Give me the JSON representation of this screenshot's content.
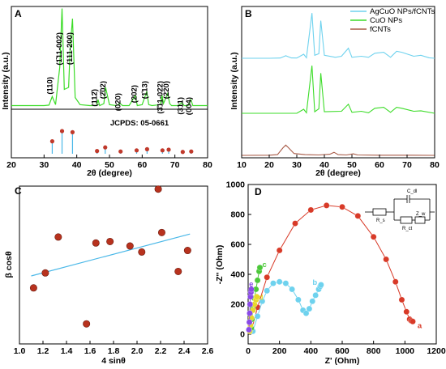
{
  "chart_data": [
    {
      "panel": "A",
      "type": "line",
      "xlabel": "2θ (degree)",
      "ylabel": "Intensity (a.u.)",
      "xlim": [
        20,
        80
      ],
      "xticks": [
        "20",
        "30",
        "40",
        "50",
        "60",
        "70",
        "80"
      ],
      "series": [
        {
          "color": "#3cdc28",
          "x": [
            20,
            25,
            30,
            31.5,
            32.5,
            33.5,
            34.8,
            35.5,
            36.2,
            37.5,
            38.0,
            38.7,
            39.5,
            41,
            44,
            46.1,
            46.5,
            47,
            48.3,
            48.8,
            50,
            52,
            53.3,
            54,
            56,
            57.9,
            58.5,
            60,
            61.4,
            62,
            63,
            65.5,
            66.1,
            66.5,
            67.8,
            68.4,
            69,
            71,
            72.2,
            72.8,
            74,
            74.9,
            75.5,
            77,
            80
          ],
          "y": [
            2,
            2,
            2,
            2.5,
            11,
            3,
            40,
            98,
            18,
            20,
            60,
            88,
            10,
            3,
            2,
            2,
            8,
            2,
            4,
            20,
            3,
            2,
            4,
            2,
            2,
            12,
            2,
            3,
            16,
            3,
            2,
            3,
            12,
            4,
            14,
            4,
            2,
            2,
            5,
            2,
            2,
            8,
            2,
            2,
            2
          ]
        }
      ],
      "reference": {
        "label": "JCPDS: 05-0661",
        "x": [
          32.5,
          35.5,
          38.7,
          46.2,
          48.7,
          53.4,
          58.3,
          61.5,
          66.2,
          68.1,
          72.4,
          75.0
        ],
        "h": [
          0.55,
          1.0,
          0.95,
          0.12,
          0.28,
          0.1,
          0.15,
          0.2,
          0.15,
          0.18,
          0.08,
          0.1
        ]
      },
      "annotations": [
        {
          "text": "(110)",
          "x": 32.5
        },
        {
          "text": "(1̄11-002)",
          "x": 35.4
        },
        {
          "text": "(111-200)",
          "x": 38.6
        },
        {
          "text": "(112̄)",
          "x": 46.2
        },
        {
          "text": "(2̄02)",
          "x": 48.7
        },
        {
          "text": "(020)",
          "x": 53.4
        },
        {
          "text": "(202)",
          "x": 58.3
        },
        {
          "text": "(1̄13)",
          "x": 61.5
        },
        {
          "text": "(3̄11-022)",
          "x": 66.2
        },
        {
          "text": "(220)",
          "x": 68.1
        },
        {
          "text": "(311)",
          "x": 72.4
        },
        {
          "text": "(004)",
          "x": 75.0
        }
      ]
    },
    {
      "panel": "B",
      "type": "line",
      "xlabel": "2θ (degree)",
      "ylabel": "Intensity (a.u.)",
      "xlim": [
        10,
        80
      ],
      "xticks": [
        "10",
        "20",
        "30",
        "40",
        "50",
        "60",
        "70",
        "80"
      ],
      "series": [
        {
          "name": "AgCuO NPs/fCNTs",
          "color": "#6ed2ee",
          "x": [
            10,
            20,
            24,
            26,
            28,
            30,
            32.5,
            33.5,
            35.5,
            36.5,
            38,
            38.7,
            40,
            44,
            46.2,
            48.7,
            50,
            53.4,
            56,
            58.3,
            61.5,
            64,
            66.2,
            68.1,
            72.4,
            75,
            78,
            80
          ],
          "y": [
            0,
            0,
            0.5,
            5,
            0.6,
            0.5,
            8,
            1,
            90,
            6,
            9,
            75,
            6,
            2,
            4,
            20,
            2,
            4,
            2,
            10,
            12,
            2,
            14,
            12,
            4,
            6,
            1,
            0
          ]
        },
        {
          "name": "CuO NPs",
          "color": "#3cdc28",
          "x": [
            10,
            30,
            32.5,
            33.5,
            35.5,
            36.5,
            38,
            38.7,
            40,
            46.2,
            48.7,
            50,
            53.4,
            56,
            58.3,
            61.5,
            64,
            66.2,
            68.1,
            72.4,
            75,
            80
          ],
          "y": [
            0,
            0,
            8,
            1,
            95,
            3,
            9,
            80,
            3,
            4,
            18,
            2,
            4,
            1,
            10,
            12,
            2,
            12,
            10,
            4,
            5,
            0
          ]
        },
        {
          "name": "fCNTs",
          "color": "#a85a46",
          "x": [
            10,
            20,
            23,
            25,
            26,
            27,
            29,
            33,
            38,
            42,
            43.5,
            45,
            48,
            50.5,
            52,
            60,
            70,
            80
          ],
          "y": [
            0,
            0.5,
            2,
            20,
            27,
            20,
            5,
            2,
            1,
            3,
            8,
            2,
            1,
            4,
            1,
            0.5,
            0.5,
            0
          ]
        }
      ]
    },
    {
      "panel": "C",
      "type": "scatter",
      "xlabel": "4 sinθ",
      "ylabel": "β cosθ",
      "xlim": [
        1.0,
        2.6
      ],
      "xticks": [
        "1.0",
        "1.2",
        "1.4",
        "1.6",
        "1.8",
        "2.0",
        "2.2",
        "2.4",
        "2.6"
      ],
      "x": [
        1.12,
        1.22,
        1.33,
        1.57,
        1.65,
        1.77,
        1.94,
        2.04,
        2.18,
        2.21,
        2.35,
        2.43
      ],
      "y": [
        0.32,
        0.42,
        0.66,
        0.08,
        0.62,
        0.63,
        0.6,
        0.56,
        0.98,
        0.69,
        0.43,
        0.57
      ],
      "fit": {
        "x": [
          1.1,
          2.45
        ],
        "y": [
          0.4,
          0.68
        ]
      }
    },
    {
      "panel": "D",
      "type": "scatter",
      "xlabel": "Z' (Ohm)",
      "ylabel": "-Z'' (Ohm)",
      "xlim": [
        0,
        1200
      ],
      "ylim": [
        0,
        1000
      ],
      "xticks": [
        "0",
        "200",
        "400",
        "600",
        "800",
        "1000",
        "1200"
      ],
      "yticks": [
        "0",
        "200",
        "400",
        "600",
        "800",
        "1000"
      ],
      "series": [
        {
          "name": "a",
          "color": "#d83a28",
          "x": [
            20,
            60,
            120,
            200,
            300,
            400,
            500,
            600,
            700,
            800,
            880,
            940,
            980,
            1010,
            1030,
            1040,
            1050
          ],
          "y": [
            20,
            180,
            380,
            560,
            740,
            830,
            860,
            850,
            790,
            650,
            500,
            350,
            230,
            150,
            100,
            90,
            85
          ]
        },
        {
          "name": "b",
          "color": "#6ed2ee",
          "x": [
            30,
            60,
            90,
            120,
            160,
            200,
            240,
            280,
            320,
            350,
            370,
            390,
            410,
            430,
            450,
            460,
            465
          ],
          "y": [
            20,
            120,
            220,
            290,
            340,
            350,
            340,
            300,
            230,
            160,
            140,
            170,
            220,
            260,
            300,
            320,
            330
          ]
        },
        {
          "name": "c",
          "color": "#4cc83a",
          "x": [
            20,
            25,
            30,
            40,
            50,
            60,
            70,
            75
          ],
          "y": [
            40,
            100,
            170,
            240,
            300,
            360,
            420,
            445
          ]
        },
        {
          "name": "d",
          "color": "#e8d82a",
          "x": [
            10,
            15,
            20,
            30,
            40,
            50,
            55
          ],
          "y": [
            20,
            60,
            110,
            160,
            200,
            230,
            250
          ]
        },
        {
          "name": "e",
          "color": "#8a4ae8",
          "x": [
            5,
            8,
            10,
            12,
            15,
            18,
            20
          ],
          "y": [
            30,
            80,
            140,
            200,
            250,
            280,
            300
          ]
        }
      ],
      "point_labels": [
        "a",
        "b",
        "c",
        "d",
        "e"
      ],
      "circuit_labels": [
        "C_dl",
        "R_s",
        "Z_w",
        "R_ct"
      ]
    }
  ],
  "panel_labels": [
    "A",
    "B",
    "C",
    "D"
  ]
}
